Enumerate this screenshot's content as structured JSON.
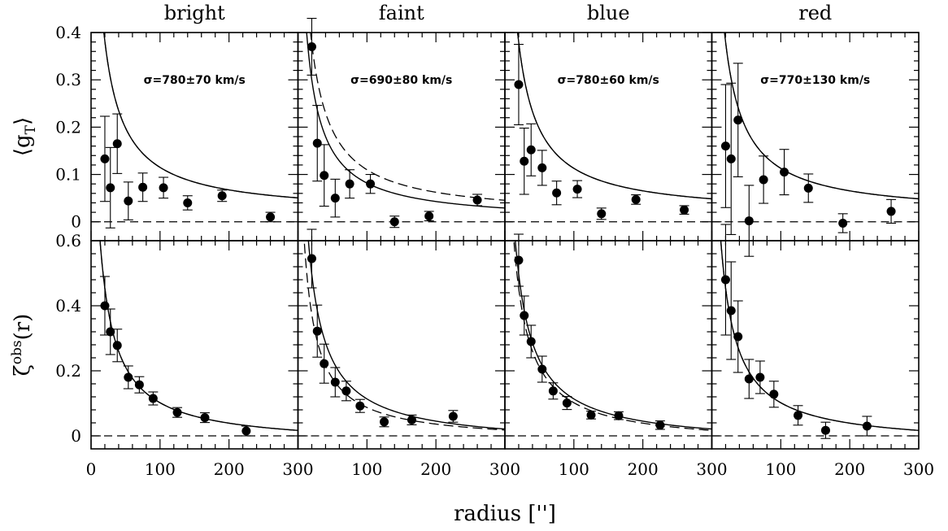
{
  "chart_data": {
    "type": "scatter",
    "xlabel": "radius ['']",
    "xlim": [
      0,
      300
    ],
    "x_ticks": [
      0,
      100,
      200,
      300
    ],
    "columns": [
      "bright",
      "faint",
      "blue",
      "red"
    ],
    "rows": [
      {
        "key": "gT",
        "ylabel_main": "⟨g",
        "ylabel_sub": "T",
        "ylabel_end": "⟩",
        "ylim": [
          -0.04,
          0.4
        ],
        "y_ticks": [
          0,
          0.1,
          0.2,
          0.3,
          0.4
        ],
        "y_tick_labels": [
          "0",
          "0.1",
          "0.2",
          "0.3",
          "0.4"
        ]
      },
      {
        "key": "zeta",
        "ylabel_main": "ζ",
        "ylabel_sup": "obs",
        "ylabel_end": "(r)",
        "ylim": [
          -0.04,
          0.6
        ],
        "y_ticks": [
          0,
          0.2,
          0.4,
          0.6
        ],
        "y_tick_labels": [
          "0",
          "0.2",
          "0.4",
          "0.6"
        ]
      }
    ],
    "sigma_labels": [
      "σ=780±70 km/s",
      "σ=690±80 km/s",
      "σ=780±60 km/s",
      "σ=770±130 km/s"
    ],
    "gT_data": {
      "bright": [
        [
          20,
          0.133,
          0.09
        ],
        [
          28,
          0.072,
          0.085
        ],
        [
          38,
          0.165,
          0.063
        ],
        [
          54,
          0.044,
          0.04
        ],
        [
          75,
          0.073,
          0.03
        ],
        [
          105,
          0.072,
          0.022
        ],
        [
          140,
          0.04,
          0.015
        ],
        [
          190,
          0.055,
          0.012
        ],
        [
          260,
          0.01,
          0.01
        ]
      ],
      "faint": [
        [
          20,
          0.37,
          0.06
        ],
        [
          28,
          0.166,
          0.08
        ],
        [
          38,
          0.098,
          0.065
        ],
        [
          54,
          0.05,
          0.04
        ],
        [
          75,
          0.08,
          0.03
        ],
        [
          105,
          0.08,
          0.02
        ],
        [
          140,
          0.0,
          0.012
        ],
        [
          190,
          0.012,
          0.01
        ],
        [
          260,
          0.046,
          0.012
        ]
      ],
      "blue": [
        [
          20,
          0.29,
          0.085
        ],
        [
          28,
          0.128,
          0.07
        ],
        [
          38,
          0.152,
          0.055
        ],
        [
          54,
          0.114,
          0.037
        ],
        [
          75,
          0.061,
          0.025
        ],
        [
          105,
          0.069,
          0.018
        ],
        [
          140,
          0.017,
          0.012
        ],
        [
          190,
          0.047,
          0.01
        ],
        [
          260,
          0.025,
          0.009
        ]
      ],
      "red": [
        [
          20,
          0.16,
          0.13
        ],
        [
          28,
          0.133,
          0.16
        ],
        [
          38,
          0.215,
          0.12
        ],
        [
          54,
          0.002,
          0.075
        ],
        [
          75,
          0.089,
          0.05
        ],
        [
          105,
          0.105,
          0.048
        ],
        [
          140,
          0.071,
          0.03
        ],
        [
          190,
          -0.003,
          0.02
        ],
        [
          260,
          0.022,
          0.025
        ]
      ]
    },
    "zeta_data": {
      "bright": [
        [
          20,
          0.4,
          0.09
        ],
        [
          28,
          0.32,
          0.07
        ],
        [
          38,
          0.278,
          0.05
        ],
        [
          54,
          0.18,
          0.035
        ],
        [
          70,
          0.157,
          0.025
        ],
        [
          90,
          0.115,
          0.02
        ],
        [
          125,
          0.072,
          0.015
        ],
        [
          165,
          0.056,
          0.015
        ],
        [
          225,
          0.015,
          0.015
        ]
      ],
      "faint": [
        [
          20,
          0.545,
          0.09
        ],
        [
          28,
          0.322,
          0.08
        ],
        [
          38,
          0.222,
          0.06
        ],
        [
          54,
          0.165,
          0.045
        ],
        [
          70,
          0.138,
          0.03
        ],
        [
          90,
          0.092,
          0.02
        ],
        [
          125,
          0.043,
          0.015
        ],
        [
          165,
          0.049,
          0.015
        ],
        [
          225,
          0.06,
          0.018
        ]
      ],
      "blue": [
        [
          20,
          0.54,
          0.08
        ],
        [
          28,
          0.37,
          0.06
        ],
        [
          38,
          0.29,
          0.05
        ],
        [
          54,
          0.205,
          0.04
        ],
        [
          70,
          0.138,
          0.025
        ],
        [
          90,
          0.101,
          0.02
        ],
        [
          125,
          0.064,
          0.012
        ],
        [
          165,
          0.062,
          0.012
        ],
        [
          225,
          0.033,
          0.013
        ]
      ],
      "red": [
        [
          20,
          0.48,
          0.17
        ],
        [
          28,
          0.385,
          0.15
        ],
        [
          38,
          0.305,
          0.11
        ],
        [
          54,
          0.175,
          0.06
        ],
        [
          70,
          0.18,
          0.05
        ],
        [
          90,
          0.128,
          0.04
        ],
        [
          125,
          0.063,
          0.03
        ],
        [
          165,
          0.017,
          0.025
        ],
        [
          225,
          0.03,
          0.03
        ]
      ]
    },
    "fits": {
      "gT_solid_amp": [
        11.0,
        9.0,
        11.0,
        11.0
      ],
      "gT_dashed_amp": [
        11.0,
        11.0,
        11.0,
        11.0
      ],
      "gT_const": [
        0.015,
        0.0,
        0.013,
        0.013
      ],
      "gT_dashed_const": [
        0.015,
        0.01,
        0.013,
        0.013
      ],
      "zeta_solid_amp": [
        14.5,
        15.8,
        15.8,
        14.5
      ],
      "zeta_dashed_amp": [
        14.5,
        11.8,
        14.5,
        14.5
      ],
      "zeta_const": [
        -0.03,
        -0.03,
        -0.03,
        -0.03
      ],
      "zeta_dashed_const": [
        -0.03,
        -0.02,
        -0.03,
        -0.03
      ]
    }
  }
}
